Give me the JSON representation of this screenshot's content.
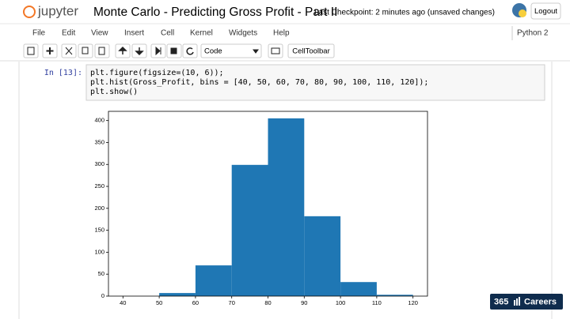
{
  "header": {
    "logo": "jupyter",
    "title": "Monte Carlo - Predicting Gross Profit - Part II",
    "checkpoint": "Last Checkpoint: 2 minutes ago (unsaved changes)",
    "logout": "Logout"
  },
  "menu": {
    "items": [
      "File",
      "Edit",
      "View",
      "Insert",
      "Cell",
      "Kernel",
      "Widgets",
      "Help"
    ],
    "kernel": "Python 2"
  },
  "toolbar": {
    "cell_type": "Code",
    "cell_toolbar": "CellToolbar"
  },
  "cell": {
    "prompt": "In [13]:",
    "code": [
      "plt.figure(figsize=(10, 6));",
      "plt.hist(Gross_Profit, bins = [40, 50, 60, 70, 80, 90, 100, 110, 120]);",
      "plt.show()"
    ]
  },
  "watermark": {
    "number": "365",
    "text": "Careers"
  },
  "chart_data": {
    "type": "histogram",
    "bins": [
      40,
      50,
      60,
      70,
      80,
      90,
      100,
      110,
      120
    ],
    "values": [
      0,
      7,
      70,
      299,
      405,
      182,
      32,
      3
    ],
    "color": "#1f77b4",
    "xlim": [
      36,
      124
    ],
    "xticks": [
      40,
      50,
      60,
      70,
      80,
      90,
      100,
      110,
      120
    ],
    "ylim": [
      0,
      421
    ],
    "yticks": [
      0,
      50,
      100,
      150,
      200,
      250,
      300,
      350,
      400
    ]
  }
}
